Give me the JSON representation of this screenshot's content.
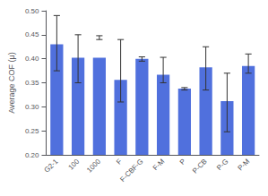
{
  "chart_data": {
    "type": "bar",
    "categories": [
      "G2-1",
      "100",
      "1000",
      "F",
      "F-CBF-G",
      "F-M",
      "P",
      "P-CB",
      "P-G",
      "P-M"
    ],
    "values": [
      0.43,
      0.402,
      0.402,
      0.356,
      0.4,
      0.367,
      0.338,
      0.382,
      0.312,
      0.385
    ],
    "error_low": [
      0.375,
      0.35,
      0.44,
      0.31,
      0.395,
      0.35,
      0.335,
      0.335,
      0.248,
      0.37
    ],
    "error_high": [
      0.49,
      0.45,
      0.448,
      0.44,
      0.404,
      0.403,
      0.34,
      0.425,
      0.37,
      0.41
    ],
    "ylabel": "Average COF (μ)",
    "ylim": [
      0.2,
      0.5
    ],
    "yticks": [
      {
        "value": 0.2,
        "label": "0.20"
      },
      0.25,
      {
        "value": 0.3,
        "label": "0.30"
      },
      0.35,
      {
        "value": 0.4,
        "label": "0.40"
      },
      0.45,
      {
        "value": 0.5,
        "label": "0.50"
      }
    ],
    "grid": false
  }
}
